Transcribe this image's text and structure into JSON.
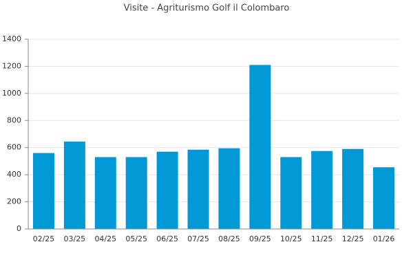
{
  "chart_data": {
    "type": "bar",
    "title": "Visite - Agriturismo Golf il Colombaro",
    "categories": [
      "02/25",
      "03/25",
      "04/25",
      "05/25",
      "06/25",
      "07/25",
      "08/25",
      "09/25",
      "10/25",
      "11/25",
      "12/25",
      "01/26"
    ],
    "values": [
      560,
      645,
      530,
      530,
      570,
      585,
      595,
      1210,
      530,
      575,
      590,
      455
    ],
    "color": "#0099d6",
    "ylim": [
      0,
      1400
    ],
    "yticks": [
      0,
      200,
      400,
      600,
      800,
      1000,
      1200,
      1400
    ],
    "grid": true
  }
}
